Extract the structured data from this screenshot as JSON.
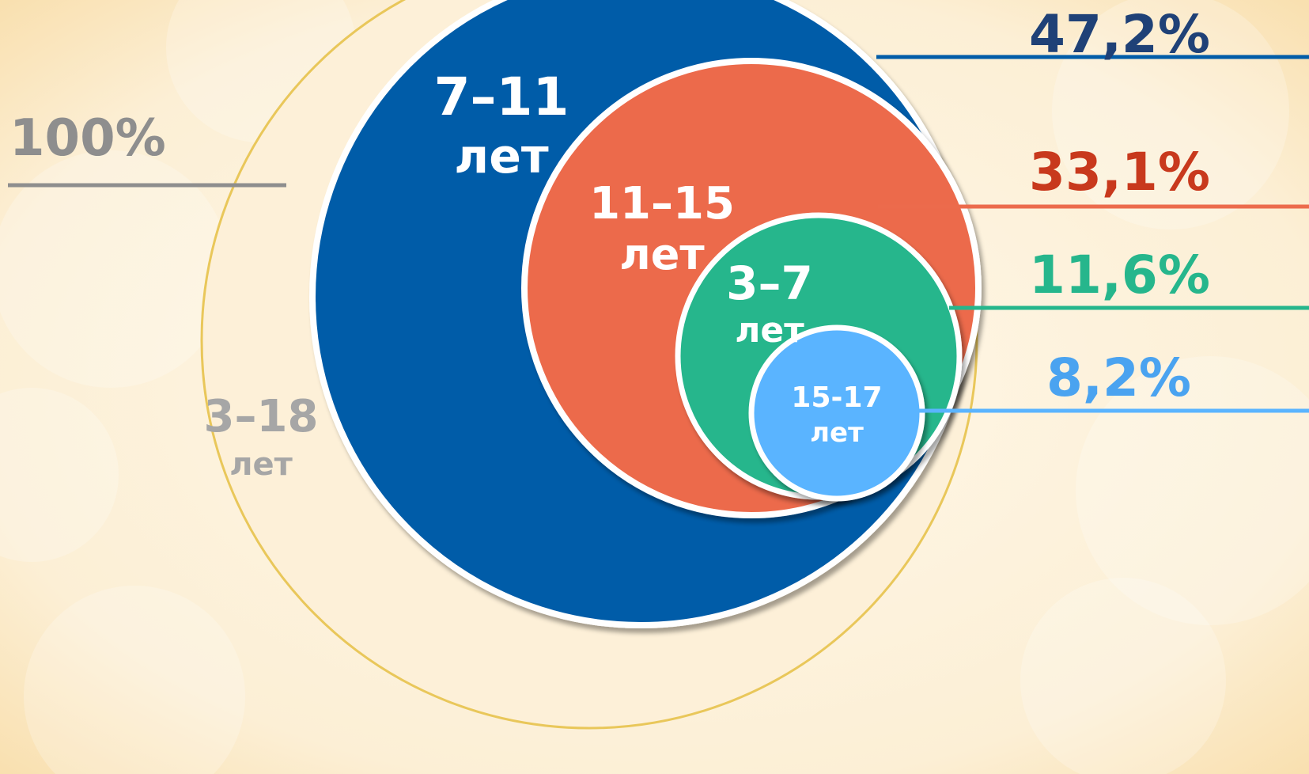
{
  "chart_data": {
    "type": "nested-circles",
    "total": {
      "label_range": "3–18",
      "label_unit": "лет",
      "value_label": "100%",
      "value": 100
    },
    "series": [
      {
        "name": "7–11 лет",
        "range": "7–11",
        "unit": "лет",
        "value": 47.2,
        "value_label": "47,2%"
      },
      {
        "name": "11–15 лет",
        "range": "11–15",
        "unit": "лет",
        "value": 33.1,
        "value_label": "33,1%"
      },
      {
        "name": "3–7 лет",
        "range": "3–7",
        "unit": "лет",
        "value": 11.6,
        "value_label": "11,6%"
      },
      {
        "name": "15-17 лет",
        "range": "15-17",
        "unit": "лет",
        "value": 8.2,
        "value_label": "8,2%"
      }
    ]
  },
  "colors": {
    "background": "#fbe9c7",
    "total_circle": "#fdf0d8",
    "total_circle_border": "#e9c75a",
    "total_text": "#8e8e8e",
    "total_range_text": "#a6a6a6",
    "age_7_11": "#005ca8",
    "age_11_15": "#ec6b4c",
    "age_3_7": "#26b68c",
    "age_15_17": "#5ab4ff",
    "value_7_11": "#1f4177",
    "value_11_15": "#c8391d",
    "value_3_7": "#26b68c",
    "value_15_17": "#4aa3f0"
  }
}
